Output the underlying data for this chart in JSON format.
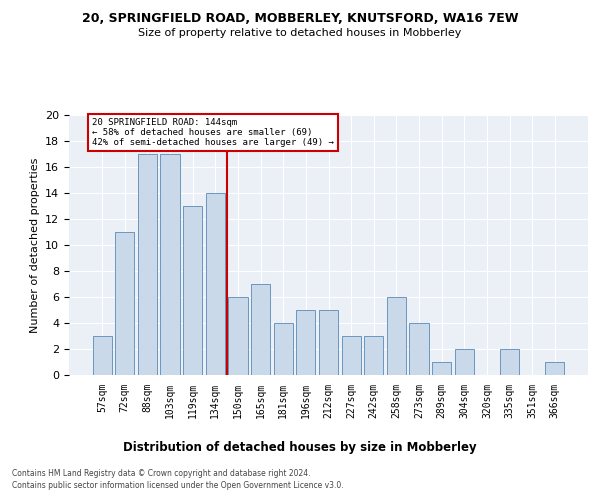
{
  "title1": "20, SPRINGFIELD ROAD, MOBBERLEY, KNUTSFORD, WA16 7EW",
  "title2": "Size of property relative to detached houses in Mobberley",
  "xlabel": "Distribution of detached houses by size in Mobberley",
  "ylabel": "Number of detached properties",
  "bar_labels": [
    "57sqm",
    "72sqm",
    "88sqm",
    "103sqm",
    "119sqm",
    "134sqm",
    "150sqm",
    "165sqm",
    "181sqm",
    "196sqm",
    "212sqm",
    "227sqm",
    "242sqm",
    "258sqm",
    "273sqm",
    "289sqm",
    "304sqm",
    "320sqm",
    "335sqm",
    "351sqm",
    "366sqm"
  ],
  "bar_values": [
    3,
    11,
    17,
    17,
    13,
    14,
    6,
    7,
    4,
    5,
    5,
    3,
    3,
    6,
    4,
    1,
    2,
    0,
    2,
    0,
    1
  ],
  "bar_color": "#c9d9e9",
  "bar_edgecolor": "#5a8ab8",
  "vline_x": 5.5,
  "vline_color": "#cc0000",
  "annotation_line1": "20 SPRINGFIELD ROAD: 144sqm",
  "annotation_line2": "← 58% of detached houses are smaller (69)",
  "annotation_line3": "42% of semi-detached houses are larger (49) →",
  "annotation_box_edgecolor": "#cc0000",
  "ylim_max": 20,
  "yticks": [
    0,
    2,
    4,
    6,
    8,
    10,
    12,
    14,
    16,
    18,
    20
  ],
  "footnote1": "Contains HM Land Registry data © Crown copyright and database right 2024.",
  "footnote2": "Contains public sector information licensed under the Open Government Licence v3.0.",
  "bg_color": "#eaf0f6",
  "grid_color": "#ffffff"
}
